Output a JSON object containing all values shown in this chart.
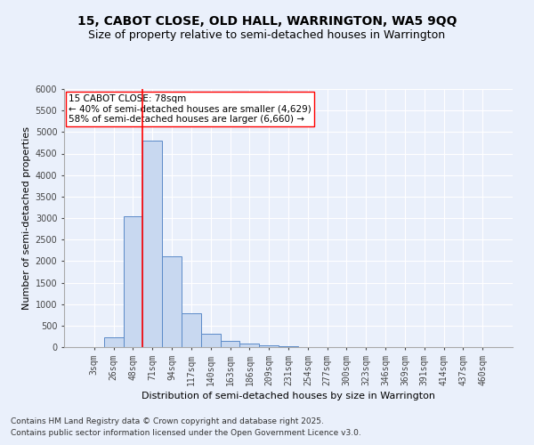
{
  "title": "15, CABOT CLOSE, OLD HALL, WARRINGTON, WA5 9QQ",
  "subtitle": "Size of property relative to semi-detached houses in Warrington",
  "xlabel": "Distribution of semi-detached houses by size in Warrington",
  "ylabel": "Number of semi-detached properties",
  "bins": [
    "3sqm",
    "26sqm",
    "48sqm",
    "71sqm",
    "94sqm",
    "117sqm",
    "140sqm",
    "163sqm",
    "186sqm",
    "209sqm",
    "231sqm",
    "254sqm",
    "277sqm",
    "300sqm",
    "323sqm",
    "346sqm",
    "369sqm",
    "391sqm",
    "414sqm",
    "437sqm",
    "460sqm"
  ],
  "values": [
    0,
    230,
    3050,
    4800,
    2120,
    780,
    310,
    140,
    75,
    40,
    30,
    10,
    5,
    0,
    0,
    0,
    0,
    0,
    0,
    0,
    0
  ],
  "bar_color": "#c8d8f0",
  "bar_edge_color": "#5b8ac8",
  "red_line_bin_index": 3,
  "red_line_label": "15 CABOT CLOSE: 78sqm",
  "annotation_smaller": "← 40% of semi-detached houses are smaller (4,629)",
  "annotation_larger": "58% of semi-detached houses are larger (6,660) →",
  "ylim": [
    0,
    6000
  ],
  "yticks": [
    0,
    500,
    1000,
    1500,
    2000,
    2500,
    3000,
    3500,
    4000,
    4500,
    5000,
    5500,
    6000
  ],
  "footnote1": "Contains HM Land Registry data © Crown copyright and database right 2025.",
  "footnote2": "Contains public sector information licensed under the Open Government Licence v3.0.",
  "bg_color": "#eaf0fb",
  "plot_bg_color": "#eaf0fb",
  "title_fontsize": 10,
  "subtitle_fontsize": 9,
  "tick_fontsize": 7,
  "ylabel_fontsize": 8,
  "xlabel_fontsize": 8,
  "footnote_fontsize": 6.5,
  "annotation_fontsize": 7.5
}
